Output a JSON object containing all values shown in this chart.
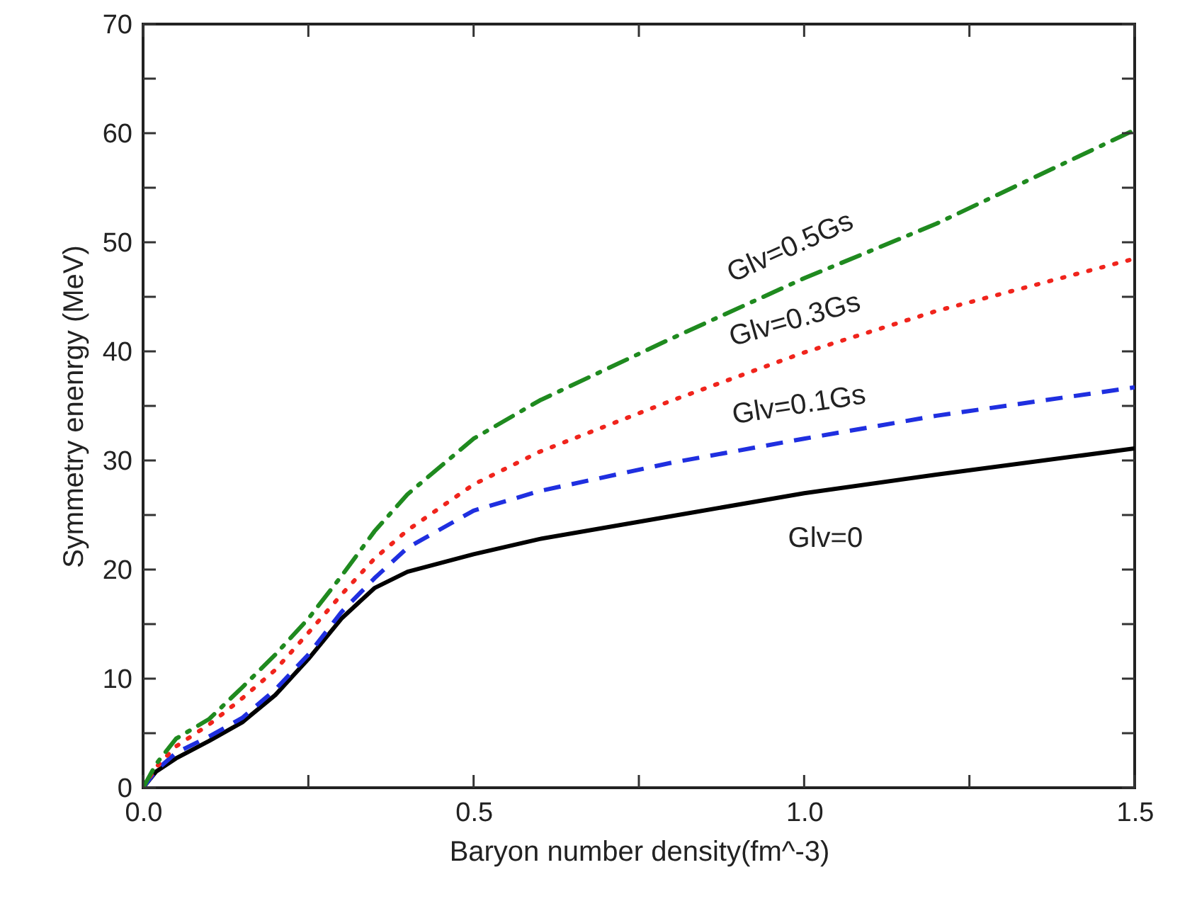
{
  "chart_data": {
    "type": "line",
    "xlabel": "Baryon number density(fm^-3)",
    "ylabel": "Symmetry enenrgy (MeV)",
    "x": [
      0,
      0.02,
      0.05,
      0.1,
      0.15,
      0.2,
      0.25,
      0.3,
      0.35,
      0.4,
      0.5,
      0.6,
      0.8,
      1.0,
      1.2,
      1.5
    ],
    "series": [
      {
        "name": "Glv=0",
        "color": "#000000",
        "line_style": "solid",
        "values": [
          0,
          1.5,
          2.7,
          4.3,
          6.0,
          8.5,
          11.8,
          15.5,
          18.3,
          19.8,
          21.4,
          22.8,
          24.9,
          27.0,
          28.7,
          31.1
        ]
      },
      {
        "name": "Glv=0.1Gs",
        "color": "#1f2fe0",
        "line_style": "dashed",
        "values": [
          0,
          1.6,
          3.2,
          4.7,
          6.4,
          9.0,
          12.2,
          16.1,
          19.2,
          22.0,
          25.4,
          27.2,
          29.8,
          32.0,
          34.1,
          36.7
        ]
      },
      {
        "name": "Glv=0.3Gs",
        "color": "#f0241c",
        "line_style": "dotted",
        "values": [
          0,
          1.9,
          3.8,
          5.8,
          8.2,
          10.8,
          14.2,
          17.7,
          21.0,
          23.6,
          27.8,
          30.8,
          35.5,
          39.9,
          43.7,
          48.5
        ]
      },
      {
        "name": "Glv=0.5Gs",
        "color": "#1f8a1f",
        "line_style": "dashdot",
        "values": [
          0,
          2.2,
          4.5,
          6.3,
          9.2,
          12.2,
          15.5,
          19.4,
          23.5,
          26.9,
          32.0,
          35.5,
          41.2,
          46.7,
          51.7,
          60.3
        ]
      }
    ],
    "xlim": [
      0,
      1.5
    ],
    "xticks": [
      {
        "value": 0,
        "label": "0.0"
      },
      {
        "value": 0.25,
        "label": null
      },
      {
        "value": 0.5,
        "label": "0.5"
      },
      {
        "value": 0.75,
        "label": null
      },
      {
        "value": 1,
        "label": "1.0"
      },
      {
        "value": 1.25,
        "label": null
      },
      {
        "value": 1.5,
        "label": "1.5"
      }
    ],
    "ylim": [
      0,
      70
    ],
    "yticks": [
      0,
      {
        "value": 5,
        "label": null
      },
      10,
      {
        "value": 15,
        "label": null
      },
      20,
      {
        "value": 25,
        "label": null
      },
      30,
      {
        "value": 35,
        "label": null
      },
      40,
      {
        "value": 45,
        "label": null
      },
      50,
      {
        "value": 55,
        "label": null
      },
      60,
      {
        "value": 65,
        "label": null
      },
      70
    ]
  }
}
